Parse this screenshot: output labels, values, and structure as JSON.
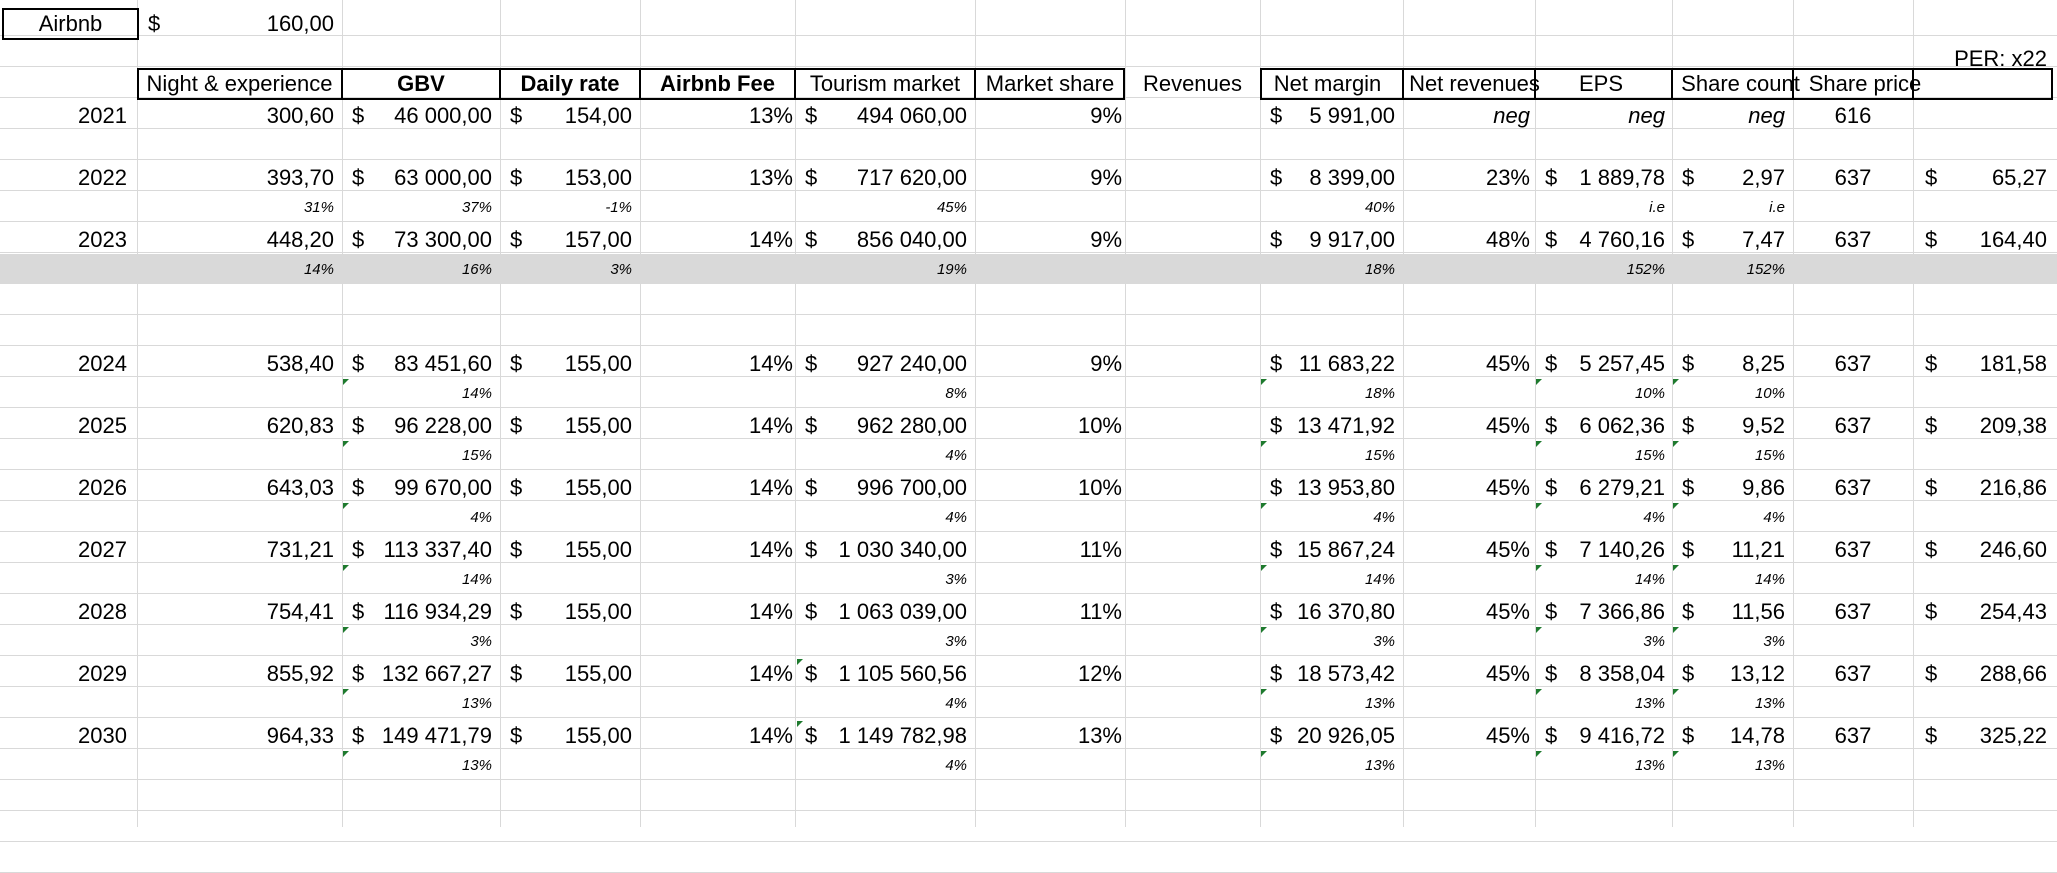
{
  "top": {
    "company": "Airbnb",
    "currency": "$",
    "price": "160,00",
    "per": "PER: x22"
  },
  "headers_left": [
    "Night & experience",
    "GBV",
    "Daily rate",
    "Airbnb Fee",
    "Tourism market",
    "Market share"
  ],
  "headers_right": [
    "Revenues",
    "Net margin",
    "Net revenues",
    "EPS",
    "Share count",
    "Share price"
  ],
  "rows": [
    {
      "year": "2021",
      "night": "300,60",
      "gbv": "46 000,00",
      "daily": "154,00",
      "fee": "13%",
      "tourism": "494 060,00",
      "share": "9%",
      "rev": "5 991,00",
      "margin": "neg",
      "netrev": "neg",
      "eps": "neg",
      "count": "616",
      "price": ""
    },
    {
      "year": "2022",
      "night": "393,70",
      "gbv": "63 000,00",
      "daily": "153,00",
      "fee": "13%",
      "tourism": "717 620,00",
      "share": "9%",
      "rev": "8 399,00",
      "margin": "23%",
      "netrev": "1 889,78",
      "eps": "2,97",
      "count": "637",
      "price": "65,27"
    },
    {
      "year": "2023",
      "night": "448,20",
      "gbv": "73 300,00",
      "daily": "157,00",
      "fee": "14%",
      "tourism": "856 040,00",
      "share": "9%",
      "rev": "9 917,00",
      "margin": "48%",
      "netrev": "4 760,16",
      "eps": "7,47",
      "count": "637",
      "price": "164,40"
    },
    {
      "year": "2024",
      "night": "538,40",
      "gbv": "83 451,60",
      "daily": "155,00",
      "fee": "14%",
      "tourism": "927 240,00",
      "share": "9%",
      "rev": "11 683,22",
      "margin": "45%",
      "netrev": "5 257,45",
      "eps": "8,25",
      "count": "637",
      "price": "181,58"
    },
    {
      "year": "2025",
      "night": "620,83",
      "gbv": "96 228,00",
      "daily": "155,00",
      "fee": "14%",
      "tourism": "962 280,00",
      "share": "10%",
      "rev": "13 471,92",
      "margin": "45%",
      "netrev": "6 062,36",
      "eps": "9,52",
      "count": "637",
      "price": "209,38"
    },
    {
      "year": "2026",
      "night": "643,03",
      "gbv": "99 670,00",
      "daily": "155,00",
      "fee": "14%",
      "tourism": "996 700,00",
      "share": "10%",
      "rev": "13 953,80",
      "margin": "45%",
      "netrev": "6 279,21",
      "eps": "9,86",
      "count": "637",
      "price": "216,86"
    },
    {
      "year": "2027",
      "night": "731,21",
      "gbv": "113 337,40",
      "daily": "155,00",
      "fee": "14%",
      "tourism": "1 030 340,00",
      "share": "11%",
      "rev": "15 867,24",
      "margin": "45%",
      "netrev": "7 140,26",
      "eps": "11,21",
      "count": "637",
      "price": "246,60"
    },
    {
      "year": "2028",
      "night": "754,41",
      "gbv": "116 934,29",
      "daily": "155,00",
      "fee": "14%",
      "tourism": "1 063 039,00",
      "share": "11%",
      "rev": "16 370,80",
      "margin": "45%",
      "netrev": "7 366,86",
      "eps": "11,56",
      "count": "637",
      "price": "254,43"
    },
    {
      "year": "2029",
      "night": "855,92",
      "gbv": "132 667,27",
      "daily": "155,00",
      "fee": "14%",
      "tourism": "1 105 560,56",
      "share": "12%",
      "rev": "18 573,42",
      "margin": "45%",
      "netrev": "8 358,04",
      "eps": "13,12",
      "count": "637",
      "price": "288,66"
    },
    {
      "year": "2030",
      "night": "964,33",
      "gbv": "149 471,79",
      "daily": "155,00",
      "fee": "14%",
      "tourism": "1 149 782,98",
      "share": "13%",
      "rev": "20 926,05",
      "margin": "45%",
      "netrev": "9 416,72",
      "eps": "14,78",
      "count": "637",
      "price": "325,22"
    }
  ],
  "growth": [
    {
      "night": "31%",
      "gbv": "37%",
      "daily": "-1%",
      "tourism": "45%",
      "rev": "40%",
      "netrev": "i.e",
      "eps": "i.e"
    },
    {
      "night": "14%",
      "gbv": "16%",
      "daily": "3%",
      "tourism": "19%",
      "rev": "18%",
      "netrev": "152%",
      "eps": "152%"
    },
    {
      "night": "",
      "gbv": "14%",
      "daily": "",
      "tourism": "8%",
      "rev": "18%",
      "netrev": "10%",
      "eps": "10%"
    },
    {
      "night": "",
      "gbv": "15%",
      "daily": "",
      "tourism": "4%",
      "rev": "15%",
      "netrev": "15%",
      "eps": "15%"
    },
    {
      "night": "",
      "gbv": "4%",
      "daily": "",
      "tourism": "4%",
      "rev": "4%",
      "netrev": "4%",
      "eps": "4%"
    },
    {
      "night": "",
      "gbv": "14%",
      "daily": "",
      "tourism": "3%",
      "rev": "14%",
      "netrev": "14%",
      "eps": "14%"
    },
    {
      "night": "",
      "gbv": "3%",
      "daily": "",
      "tourism": "3%",
      "rev": "3%",
      "netrev": "3%",
      "eps": "3%"
    },
    {
      "night": "",
      "gbv": "13%",
      "daily": "",
      "tourism": "4%",
      "rev": "13%",
      "netrev": "13%",
      "eps": "13%"
    },
    {
      "night": "",
      "gbv": "13%",
      "daily": "",
      "tourism": "4%",
      "rev": "13%",
      "netrev": "13%",
      "eps": "13%"
    }
  ],
  "colors": {
    "grid": "#d9d9d9",
    "band": "#d9d9d9",
    "comment": "#1e7a2e"
  },
  "icons": [
    "comment-indicator-icon"
  ]
}
